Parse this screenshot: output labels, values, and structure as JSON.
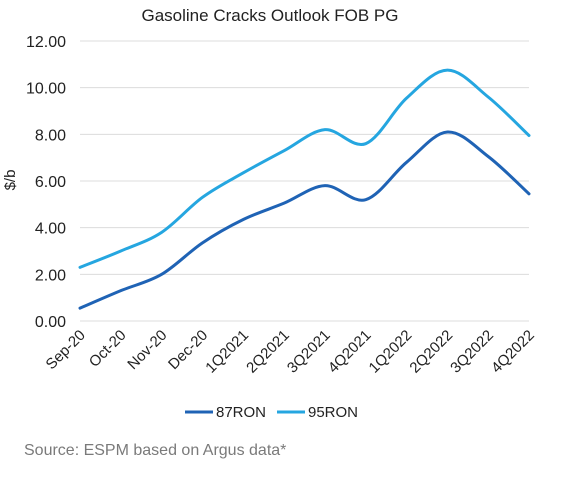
{
  "chart_data": {
    "type": "line",
    "title": "Gasoline Cracks Outlook FOB PG",
    "ylabel": "$/b",
    "xlabel": "",
    "ylim": [
      0,
      12
    ],
    "yticks": [
      "0.00",
      "2.00",
      "4.00",
      "6.00",
      "8.00",
      "10.00",
      "12.00"
    ],
    "grid": "horizontal",
    "legend_position": "bottom",
    "categories": [
      "Sep-20",
      "Oct-20",
      "Nov-20",
      "Dec-20",
      "1Q2021",
      "2Q2021",
      "3Q2021",
      "4Q2021",
      "1Q2022",
      "2Q2022",
      "3Q2022",
      "4Q2022"
    ],
    "series": [
      {
        "name": "87RON",
        "color": "#1f63b5",
        "values": [
          0.55,
          1.3,
          2.0,
          3.35,
          4.35,
          5.05,
          5.8,
          5.2,
          6.8,
          8.1,
          7.05,
          5.45
        ]
      },
      {
        "name": "95RON",
        "color": "#25a6e0",
        "values": [
          2.3,
          3.0,
          3.8,
          5.3,
          6.35,
          7.3,
          8.2,
          7.6,
          9.55,
          10.75,
          9.6,
          7.95
        ]
      }
    ]
  },
  "source": "Source: ESPM based on Argus data*"
}
